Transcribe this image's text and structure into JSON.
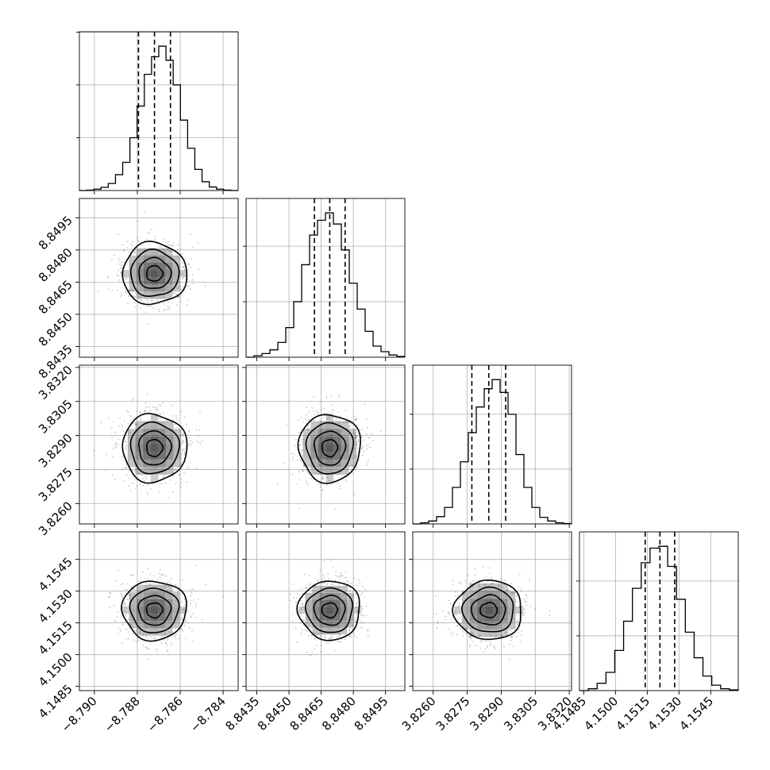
{
  "chart_data": {
    "type": "corner",
    "parameters": [
      {
        "mean": -8.7872,
        "sigma": 0.00075,
        "ticks": [
          -8.79,
          -8.788,
          -8.786,
          -8.784
        ],
        "tick_labels": [
          "−8.790",
          "−8.788",
          "−8.786",
          "−8.784"
        ],
        "range": [
          -8.7907,
          -8.7833
        ]
      },
      {
        "mean": 8.8469,
        "sigma": 0.00072,
        "ticks": [
          8.8435,
          8.845,
          8.8465,
          8.848,
          8.8495
        ],
        "tick_labels": [
          "8.8435",
          "8.8450",
          "8.8465",
          "8.8480",
          "8.8495"
        ],
        "range": [
          8.843,
          8.8504
        ]
      },
      {
        "mean": 3.82845,
        "sigma": 0.00075,
        "ticks": [
          3.826,
          3.8275,
          3.829,
          3.8305,
          3.832
        ],
        "tick_labels": [
          "3.8260",
          "3.8275",
          "3.8290",
          "3.8305",
          "3.8320"
        ],
        "range": [
          3.8251,
          3.8321
        ]
      },
      {
        "mean": 4.1521,
        "sigma": 0.0007,
        "ticks": [
          4.1485,
          4.15,
          4.1515,
          4.153,
          4.1545
        ],
        "tick_labels": [
          "4.1485",
          "4.1500",
          "4.1515",
          "4.1530",
          "4.1545"
        ],
        "range": [
          4.1483,
          4.1558
        ]
      }
    ],
    "quantiles": [
      0.16,
      0.5,
      0.84
    ],
    "histograms": [
      {
        "edges": [
          -8.7907,
          -8.7833
        ],
        "counts": [
          0,
          1,
          4,
          9,
          20,
          45,
          80,
          150,
          240,
          330,
          380,
          410,
          370,
          300,
          200,
          120,
          60,
          25,
          10,
          4,
          1,
          0
        ]
      },
      {
        "edges": [
          8.843,
          8.8504
        ],
        "counts": [
          0,
          4,
          10,
          20,
          40,
          80,
          150,
          250,
          330,
          370,
          390,
          360,
          290,
          200,
          130,
          70,
          30,
          15,
          6,
          2
        ]
      },
      {
        "edges": [
          3.8251,
          3.8321
        ],
        "counts": [
          0,
          3,
          8,
          20,
          45,
          100,
          170,
          250,
          320,
          370,
          395,
          360,
          300,
          190,
          100,
          45,
          18,
          8,
          3,
          1
        ]
      },
      {
        "edges": [
          4.1483,
          4.1558
        ],
        "counts": [
          0,
          5,
          20,
          50,
          110,
          190,
          280,
          350,
          390,
          395,
          340,
          250,
          160,
          90,
          40,
          15,
          5,
          2
        ]
      }
    ],
    "grid": true
  }
}
